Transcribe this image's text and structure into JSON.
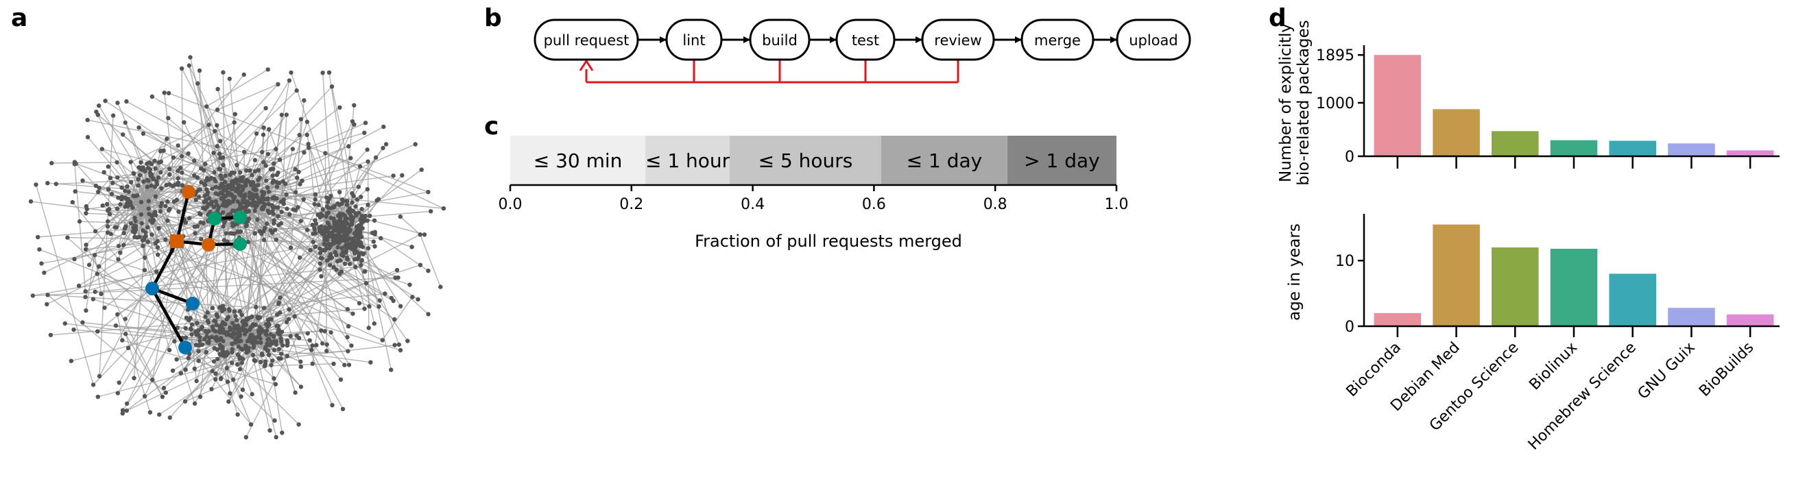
{
  "panels": {
    "a": {
      "letter": "a"
    },
    "b": {
      "letter": "b",
      "steps": [
        "pull request",
        "lint",
        "build",
        "test",
        "review",
        "merge",
        "upload"
      ],
      "feedback_color": "#e8141c"
    },
    "c": {
      "letter": "c",
      "chart_data": {
        "type": "bar",
        "orientation": "horizontal-stacked",
        "segments": [
          {
            "name": "≤ 30 min",
            "start": 0.0,
            "end": 0.223,
            "color": "#efefef"
          },
          {
            "name": "≤ 1 hour",
            "start": 0.223,
            "end": 0.362,
            "color": "#dcdcdc"
          },
          {
            "name": "≤ 5 hours",
            "start": 0.362,
            "end": 0.612,
            "color": "#c5c5c5"
          },
          {
            "name": "≤ 1 day",
            "start": 0.612,
            "end": 0.82,
            "color": "#a8a8a8"
          },
          {
            "name": "> 1 day",
            "start": 0.82,
            "end": 1.0,
            "color": "#858585"
          }
        ],
        "xlabel": "Fraction of pull requests merged",
        "xlim": [
          0,
          1
        ],
        "xticks": [
          "0.0",
          "0.2",
          "0.4",
          "0.6",
          "0.8",
          "1.0"
        ]
      }
    },
    "d": {
      "letter": "d",
      "chart_data": [
        {
          "type": "bar",
          "categories": [
            "Bioconda",
            "Debian Med",
            "Gentoo Science",
            "Biolinux",
            "Homebrew Science",
            "GNU Guix",
            "BioBuilds"
          ],
          "values": [
            1895,
            880,
            470,
            300,
            290,
            240,
            110
          ],
          "ylabel_lines": [
            "Number of explicitly",
            "bio-related packages"
          ],
          "ylim": [
            0,
            2000
          ],
          "yticks": [
            0,
            1000,
            1895
          ],
          "colors": [
            "#e8909c",
            "#c49a4a",
            "#8aa843",
            "#3aab84",
            "#3ba8b6",
            "#9fa6ea",
            "#e08ad6"
          ]
        },
        {
          "type": "bar",
          "categories": [
            "Bioconda",
            "Debian Med",
            "Gentoo Science",
            "Biolinux",
            "Homebrew Science",
            "GNU Guix",
            "BioBuilds"
          ],
          "values": [
            2,
            15.5,
            12,
            11.8,
            8,
            2.8,
            1.8
          ],
          "ylabel": "age in years",
          "ylim": [
            0,
            16.5
          ],
          "yticks": [
            0,
            10
          ],
          "colors": [
            "#e8909c",
            "#c49a4a",
            "#8aa843",
            "#3aab84",
            "#3ba8b6",
            "#9fa6ea",
            "#e08ad6"
          ]
        }
      ]
    }
  }
}
